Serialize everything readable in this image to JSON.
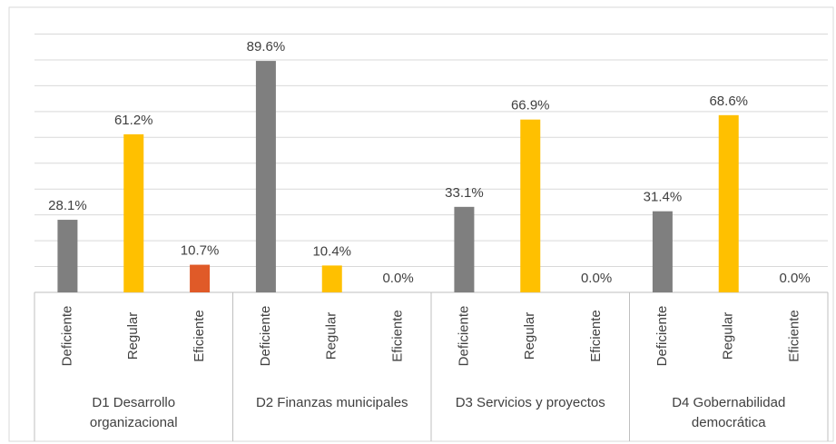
{
  "chart_data": {
    "type": "bar",
    "groups": [
      "D1 Desarrollo organizacional",
      "D2 Finanzas municipales",
      "D3 Servicios y proyectos",
      "D4 Gobernabilidad democrática"
    ],
    "categories": [
      "Deficiente",
      "Regular",
      "Eficiente",
      "Deficiente",
      "Regular",
      "Eficiente",
      "Deficiente",
      "Regular",
      "Eficiente",
      "Deficiente",
      "Regular",
      "Eficiente"
    ],
    "values": [
      28.1,
      61.2,
      10.7,
      89.6,
      10.4,
      0.0,
      33.1,
      66.9,
      0.0,
      31.4,
      68.6,
      0.0
    ],
    "value_labels": [
      "28.1%",
      "61.2%",
      "10.7%",
      "89.6%",
      "10.4%",
      "0.0%",
      "33.1%",
      "66.9%",
      "0.0%",
      "31.4%",
      "68.6%",
      "0.0%"
    ],
    "colors": [
      "#7f7f7f",
      "#ffc000",
      "#e05a28",
      "#7f7f7f",
      "#ffc000",
      "#e05a28",
      "#7f7f7f",
      "#ffc000",
      "#e05a28",
      "#7f7f7f",
      "#ffc000",
      "#e05a28"
    ],
    "ylim": [
      0,
      100
    ],
    "yticks": [
      0,
      10,
      20,
      30,
      40,
      50,
      60,
      70,
      80,
      90,
      100
    ],
    "grid": true
  }
}
